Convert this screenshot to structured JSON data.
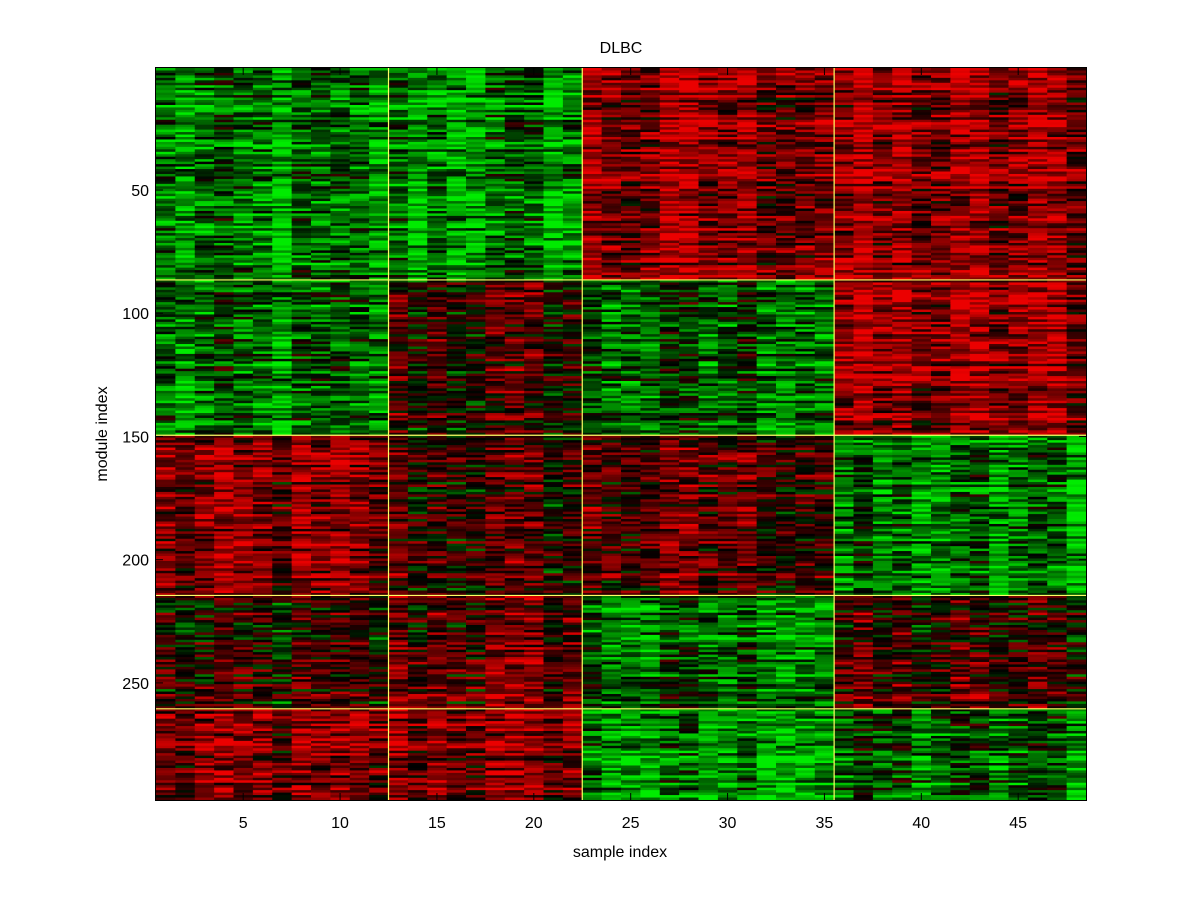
{
  "chart_data": {
    "type": "heatmap",
    "title": "DLBC",
    "xlabel": "sample index",
    "ylabel": "module index",
    "xlim": [
      0.5,
      48.5
    ],
    "ylim": [
      0.5,
      297.5
    ],
    "y_reversed": true,
    "n_samples": 48,
    "n_modules": 297,
    "x_ticks": [
      5,
      10,
      15,
      20,
      25,
      30,
      35,
      40,
      45
    ],
    "x_tick_labels": [
      "5",
      "10",
      "15",
      "20",
      "25",
      "30",
      "35",
      "40",
      "45"
    ],
    "y_ticks": [
      50,
      100,
      150,
      200,
      250
    ],
    "y_tick_labels": [
      "50",
      "100",
      "150",
      "200",
      "250"
    ],
    "colormap": {
      "low": "#00ff00",
      "mid": "#000000",
      "high": "#ff0000"
    },
    "separator_color": "#ffff66",
    "sample_group_boundaries": [
      12.5,
      22.5,
      35.5
    ],
    "module_group_boundaries": [
      86.5,
      149.5,
      214.5,
      260.5
    ],
    "block_mean_values": [
      [
        -0.55,
        -0.55,
        0.55,
        0.55
      ],
      [
        -0.5,
        0.15,
        -0.35,
        0.6
      ],
      [
        0.45,
        0.2,
        0.3,
        -0.55
      ],
      [
        0.05,
        0.35,
        -0.45,
        0.15
      ],
      [
        0.45,
        0.5,
        -0.6,
        -0.4
      ]
    ],
    "grid": false
  }
}
